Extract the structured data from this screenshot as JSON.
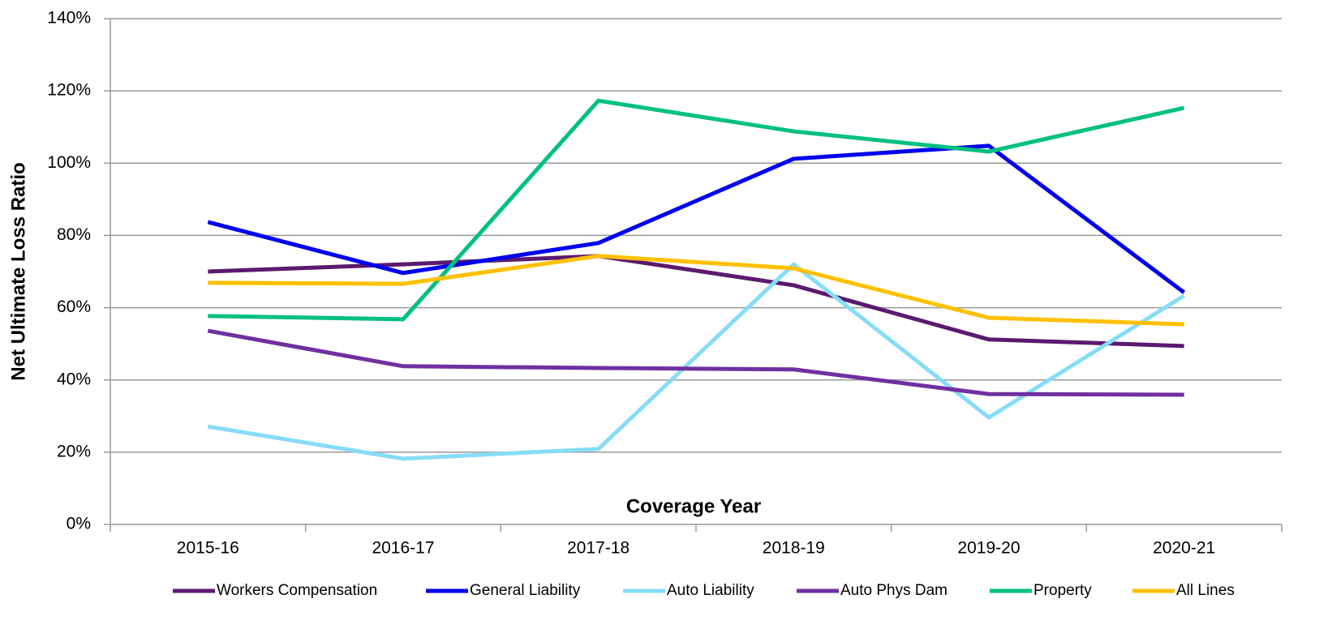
{
  "chart_data": {
    "type": "line",
    "x_label": "Coverage Year",
    "y_label": "Net Ultimate Loss Ratio",
    "categories": [
      "2015-16",
      "2016-17",
      "2017-18",
      "2018-19",
      "2019-20",
      "2020-21"
    ],
    "series": [
      {
        "name": "Workers Compensation",
        "color": "#5b1a6e",
        "values": [
          70.0,
          72.0,
          74.3,
          66.2,
          51.2,
          49.4
        ]
      },
      {
        "name": "General Liability",
        "color": "#0000ee",
        "values": [
          83.7,
          69.6,
          77.9,
          101.2,
          104.8,
          64.2
        ]
      },
      {
        "name": "Auto Liability",
        "color": "#87dcf7",
        "values": [
          27.1,
          18.2,
          20.9,
          72.0,
          29.6,
          63.3
        ]
      },
      {
        "name": "Auto Phys Dam",
        "color": "#7030a0",
        "values": [
          53.6,
          43.8,
          43.3,
          42.9,
          36.1,
          35.9
        ]
      },
      {
        "name": "Property",
        "color": "#00c080",
        "values": [
          57.7,
          56.8,
          117.3,
          108.8,
          103.2,
          115.3
        ]
      },
      {
        "name": "All Lines",
        "color": "#ffc000",
        "values": [
          66.9,
          66.6,
          74.3,
          70.9,
          57.2,
          55.4
        ]
      }
    ],
    "ylim": [
      0,
      140
    ],
    "yticks": [
      {
        "value": 0,
        "label": "0%"
      },
      {
        "value": 20,
        "label": "20%"
      },
      {
        "value": 40,
        "label": "40%"
      },
      {
        "value": 60,
        "label": "60%"
      },
      {
        "value": 80,
        "label": "80%"
      },
      {
        "value": 100,
        "label": "100%"
      },
      {
        "value": 120,
        "label": "120%"
      },
      {
        "value": 140,
        "label": "140%"
      }
    ],
    "grid": true,
    "legend": "bottom"
  }
}
